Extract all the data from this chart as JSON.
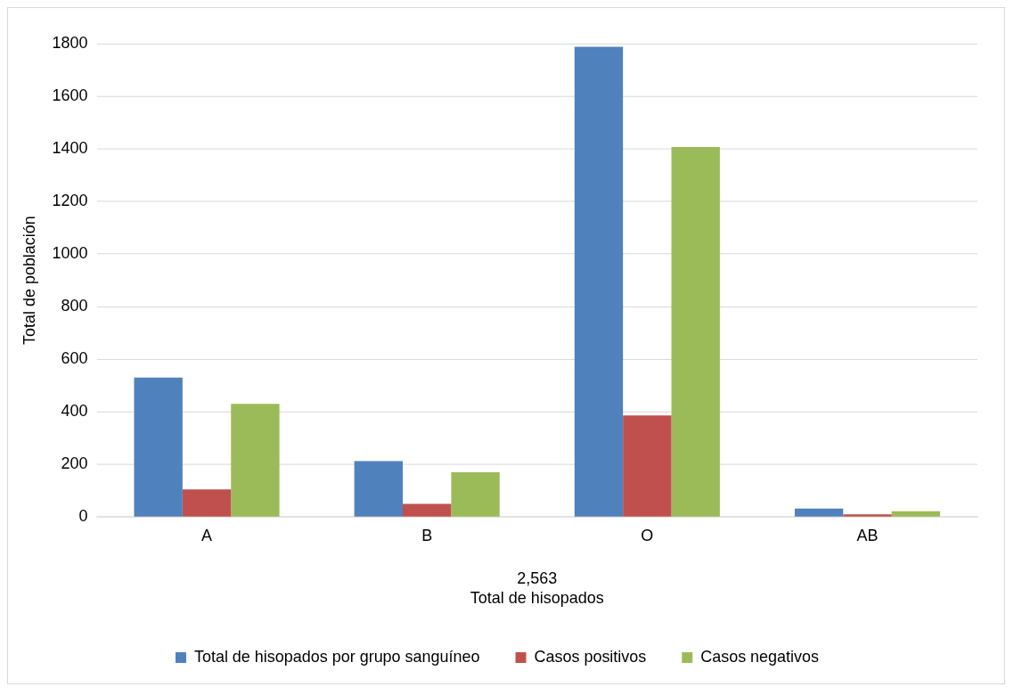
{
  "chart_data": {
    "type": "bar",
    "categories": [
      "A",
      "B",
      "O",
      "AB"
    ],
    "series": [
      {
        "name": "Total de hisopados por grupo sanguíneo",
        "color": "#4f81bd",
        "values": [
          530,
          213,
          1788,
          32
        ]
      },
      {
        "name": "Casos positivos",
        "color": "#c0504d",
        "values": [
          105,
          50,
          386,
          10
        ]
      },
      {
        "name": "Casos negativos",
        "color": "#9bbb59",
        "values": [
          430,
          170,
          1407,
          22
        ]
      }
    ],
    "ylim": [
      0,
      1800
    ],
    "yticks": [
      0,
      200,
      400,
      600,
      800,
      1000,
      1200,
      1400,
      1600,
      1800
    ],
    "xlabel": "Total de hisopados",
    "ylabel": "Total de población",
    "annotations": [
      "2,563"
    ],
    "grid": "y",
    "legend": "bottom"
  }
}
